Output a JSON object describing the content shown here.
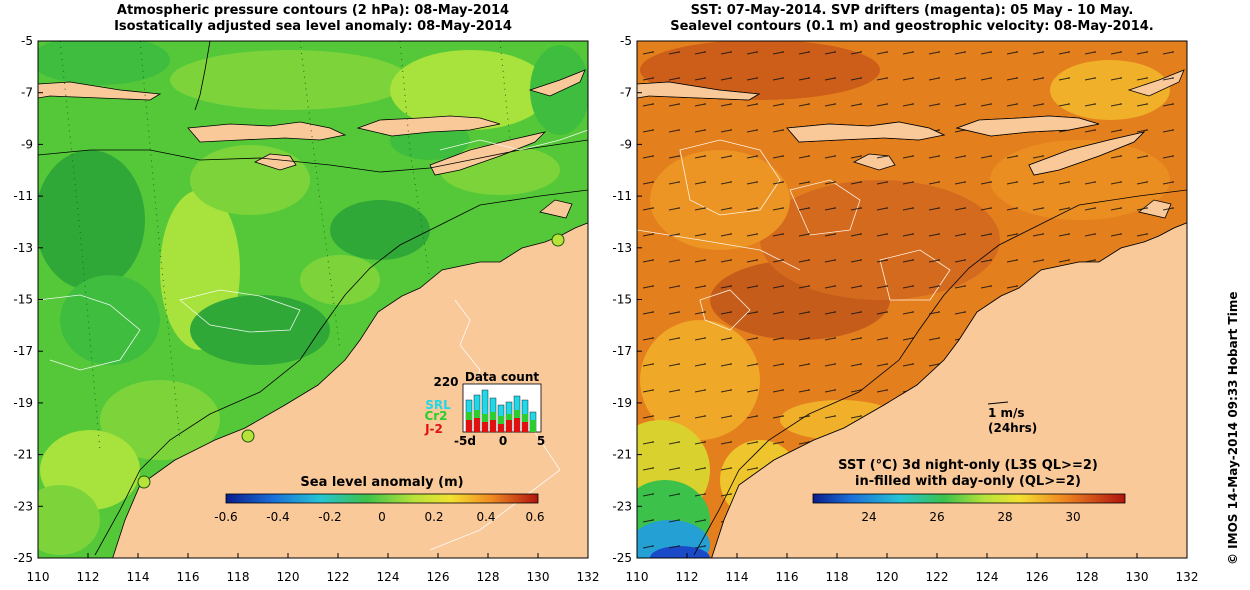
{
  "left_panel": {
    "title_line1": "Atmospheric pressure contours (2 hPa): 08-May-2014",
    "title_line2": "Isostatically adjusted sea level anomaly: 08-May-2014",
    "colorbar_title": "Sea level anomaly (m)",
    "colorbar_ticks": [
      "-0.6",
      "-0.4",
      "-0.2",
      "0",
      "0.2",
      "0.4",
      "0.6"
    ],
    "inset": {
      "title": "Data count",
      "max_label": "220",
      "series_labels": [
        "SRL",
        "Cr2",
        "J-2"
      ],
      "x_ticks": [
        "-5d",
        "0",
        "5"
      ]
    }
  },
  "right_panel": {
    "title_line1": "SST: 07-May-2014. SVP drifters (magenta): 05 May - 10 May.",
    "title_line2": "Sealevel contours (0.1 m) and geostrophic velocity: 08-May-2014.",
    "colorbar_title_line1": "SST (°C)  3d night-only (L3S QL>=2)",
    "colorbar_title_line2": "in-filled with day-only (QL>=2)",
    "colorbar_ticks": [
      "24",
      "26",
      "28",
      "30"
    ],
    "velocity_scale_line1": "1 m/s",
    "velocity_scale_line2": "(24hrs)"
  },
  "axes": {
    "lat_ticks": [
      "-5",
      "-7",
      "-9",
      "-11",
      "-13",
      "-15",
      "-17",
      "-19",
      "-21",
      "-23",
      "-25"
    ],
    "lon_ticks": [
      "110",
      "112",
      "114",
      "116",
      "118",
      "120",
      "122",
      "124",
      "126",
      "128",
      "130",
      "132"
    ]
  },
  "credit": "© IMOS 14-May-2014 09:33 Hobart Time",
  "colors": {
    "land": "#f9c99a",
    "sla_green": "#55c83a",
    "sla_light": "#a8e23c",
    "sla_dark": "#2fa838",
    "sst_orange": "#e47f1e",
    "sst_dark": "#c65c1a"
  }
}
